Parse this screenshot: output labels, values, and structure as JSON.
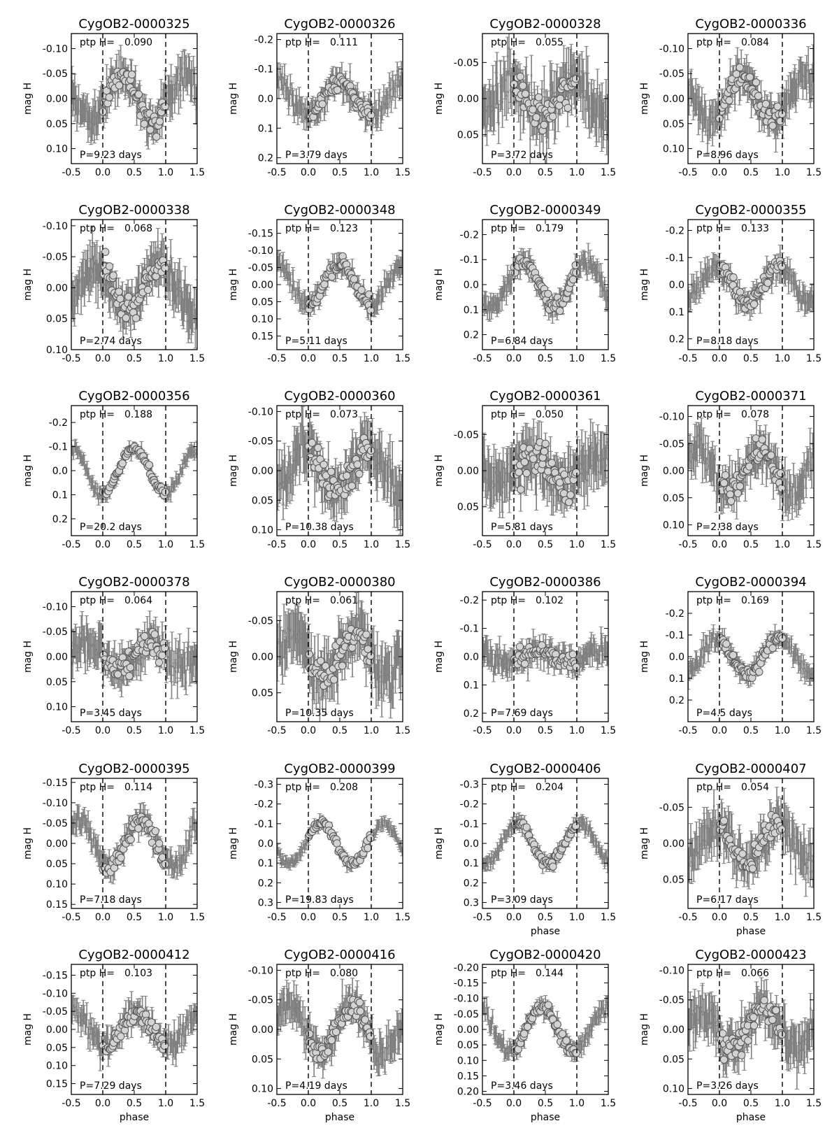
{
  "chart_data": {
    "type": "scatter",
    "description_labels": {
      "ylabel": "mag H",
      "xlabel": "phase",
      "ptp_prefix": "ptp H=",
      "period_prefix": "P=",
      "period_suffix": " days"
    },
    "shared": {
      "xlim": [
        -0.5,
        1.5
      ],
      "xticks": [
        -0.5,
        0.0,
        0.5,
        1.0,
        1.5
      ],
      "tick_labels_x": [
        "-0.5",
        "0.0",
        "0.5",
        "1.0",
        "1.5"
      ],
      "phase_markers": [
        0.0,
        1.0
      ],
      "y_inverted": true,
      "series_colors": {
        "errorbar": "#808080",
        "marker_fill": "#d3d3d3",
        "marker_edge": "#555555"
      }
    },
    "panels": [
      {
        "title": "CygOB2-0000325",
        "ptp": "0.090",
        "period": "9.23",
        "ylim": [
          -0.13,
          0.13
        ],
        "yticks": [
          "-0.10",
          "-0.05",
          "0.00",
          "0.05",
          "0.10"
        ],
        "ytick_vals": [
          -0.1,
          -0.05,
          0.0,
          0.05,
          0.1
        ],
        "peak": 0.3,
        "amp": 0.045,
        "noise": 0.025,
        "xlabel": false
      },
      {
        "title": "CygOB2-0000326",
        "ptp": "0.111",
        "period": "3.79",
        "ylim": [
          -0.22,
          0.22
        ],
        "yticks": [
          "-0.2",
          "-0.1",
          "0.0",
          "0.1",
          "0.2"
        ],
        "ytick_vals": [
          -0.2,
          -0.1,
          0.0,
          0.1,
          0.2
        ],
        "peak": 0.5,
        "amp": 0.055,
        "noise": 0.03,
        "xlabel": false
      },
      {
        "title": "CygOB2-0000328",
        "ptp": "0.055",
        "period": "3.72",
        "ylim": [
          -0.09,
          0.09
        ],
        "yticks": [
          "-0.05",
          "0.00",
          "0.05"
        ],
        "ytick_vals": [
          -0.05,
          0.0,
          0.05
        ],
        "peak": 0.95,
        "amp": 0.027,
        "noise": 0.025,
        "xlabel": false
      },
      {
        "title": "CygOB2-0000336",
        "ptp": "0.084",
        "period": "8.96",
        "ylim": [
          -0.13,
          0.13
        ],
        "yticks": [
          "-0.10",
          "-0.05",
          "0.00",
          "0.05",
          "0.10"
        ],
        "ytick_vals": [
          -0.1,
          -0.05,
          0.0,
          0.05,
          0.1
        ],
        "peak": 0.35,
        "amp": 0.042,
        "noise": 0.025,
        "xlabel": false
      },
      {
        "title": "CygOB2-0000338",
        "ptp": "0.068",
        "period": "2.74",
        "ylim": [
          -0.11,
          0.1
        ],
        "yticks": [
          "-0.10",
          "-0.05",
          "0.00",
          "0.05",
          "0.10"
        ],
        "ytick_vals": [
          -0.1,
          -0.05,
          0.0,
          0.05,
          0.1
        ],
        "peak": 0.9,
        "amp": 0.034,
        "noise": 0.025,
        "xlabel": false
      },
      {
        "title": "CygOB2-0000348",
        "ptp": "0.123",
        "period": "5.11",
        "ylim": [
          -0.19,
          0.19
        ],
        "yticks": [
          "-0.15",
          "-0.10",
          "-0.05",
          "0.00",
          "0.05",
          "0.10",
          "0.15"
        ],
        "ytick_vals": [
          -0.15,
          -0.1,
          -0.05,
          0.0,
          0.05,
          0.1,
          0.15
        ],
        "peak": 0.5,
        "amp": 0.06,
        "noise": 0.02,
        "xlabel": false
      },
      {
        "title": "CygOB2-0000349",
        "ptp": "0.179",
        "period": "6.84",
        "ylim": [
          -0.26,
          0.26
        ],
        "yticks": [
          "-0.2",
          "-0.1",
          "0.0",
          "0.1",
          "0.2"
        ],
        "ytick_vals": [
          -0.2,
          -0.1,
          0.0,
          0.1,
          0.2
        ],
        "peak": 0.15,
        "amp": 0.09,
        "noise": 0.03,
        "xlabel": false
      },
      {
        "title": "CygOB2-0000355",
        "ptp": "0.133",
        "period": "8.18",
        "ylim": [
          -0.24,
          0.24
        ],
        "yticks": [
          "-0.2",
          "-0.1",
          "0.0",
          "0.1",
          "0.2"
        ],
        "ytick_vals": [
          -0.2,
          -0.1,
          0.0,
          0.1,
          0.2
        ],
        "peak": 0.95,
        "amp": 0.066,
        "noise": 0.03,
        "xlabel": false
      },
      {
        "title": "CygOB2-0000356",
        "ptp": "0.188",
        "period": "20.2",
        "ylim": [
          -0.27,
          0.27
        ],
        "yticks": [
          "-0.2",
          "-0.1",
          "0.0",
          "0.1",
          "0.2"
        ],
        "ytick_vals": [
          -0.2,
          -0.1,
          0.0,
          0.1,
          0.2
        ],
        "peak": 0.5,
        "amp": 0.094,
        "noise": 0.02,
        "xlabel": false
      },
      {
        "title": "CygOB2-0000360",
        "ptp": "0.073",
        "period": "10.38",
        "ylim": [
          -0.11,
          0.11
        ],
        "yticks": [
          "-0.10",
          "-0.05",
          "0.00",
          "0.05",
          "0.10"
        ],
        "ytick_vals": [
          -0.1,
          -0.05,
          0.0,
          0.05,
          0.1
        ],
        "peak": 0.95,
        "amp": 0.036,
        "noise": 0.03,
        "xlabel": false
      },
      {
        "title": "CygOB2-0000361",
        "ptp": "0.050",
        "period": "5.81",
        "ylim": [
          -0.09,
          0.09
        ],
        "yticks": [
          "-0.05",
          "0.00",
          "0.05"
        ],
        "ytick_vals": [
          -0.05,
          0.0,
          0.05
        ],
        "peak": 0.3,
        "amp": 0.02,
        "noise": 0.025,
        "xlabel": false
      },
      {
        "title": "CygOB2-0000371",
        "ptp": "0.078",
        "period": "2.38",
        "ylim": [
          -0.12,
          0.12
        ],
        "yticks": [
          "-0.10",
          "-0.05",
          "0.00",
          "0.05",
          "0.10"
        ],
        "ytick_vals": [
          -0.1,
          -0.05,
          0.0,
          0.05,
          0.1
        ],
        "peak": 0.65,
        "amp": 0.039,
        "noise": 0.025,
        "xlabel": false
      },
      {
        "title": "CygOB2-0000378",
        "ptp": "0.064",
        "period": "3.45",
        "ylim": [
          -0.13,
          0.13
        ],
        "yticks": [
          "-0.10",
          "-0.05",
          "0.00",
          "0.05",
          "0.10"
        ],
        "ytick_vals": [
          -0.1,
          -0.05,
          0.0,
          0.05,
          0.1
        ],
        "peak": 0.75,
        "amp": 0.025,
        "noise": 0.025,
        "xlabel": false
      },
      {
        "title": "CygOB2-0000380",
        "ptp": "0.061",
        "period": "10.35",
        "ylim": [
          -0.09,
          0.09
        ],
        "yticks": [
          "-0.05",
          "0.00",
          "0.05"
        ],
        "ytick_vals": [
          -0.05,
          0.0,
          0.05
        ],
        "peak": 0.75,
        "amp": 0.03,
        "noise": 0.025,
        "xlabel": false
      },
      {
        "title": "CygOB2-0000386",
        "ptp": "0.102",
        "period": "7.69",
        "ylim": [
          -0.23,
          0.23
        ],
        "yticks": [
          "-0.2",
          "-0.1",
          "0.0",
          "0.1",
          "0.2"
        ],
        "ytick_vals": [
          -0.2,
          -0.1,
          0.0,
          0.1,
          0.2
        ],
        "peak": 0.4,
        "amp": 0.02,
        "noise": 0.03,
        "xlabel": false
      },
      {
        "title": "CygOB2-0000394",
        "ptp": "0.169",
        "period": "4.5",
        "ylim": [
          -0.3,
          0.3
        ],
        "yticks": [
          "-0.2",
          "-0.1",
          "0.0",
          "0.1",
          "0.2"
        ],
        "ytick_vals": [
          -0.2,
          -0.1,
          0.0,
          0.1,
          0.2
        ],
        "peak": 0.95,
        "amp": 0.084,
        "noise": 0.03,
        "xlabel": false
      },
      {
        "title": "CygOB2-0000395",
        "ptp": "0.114",
        "period": "7.18",
        "ylim": [
          -0.16,
          0.16
        ],
        "yticks": [
          "-0.15",
          "-0.10",
          "-0.05",
          "0.00",
          "0.05",
          "0.10",
          "0.15"
        ],
        "ytick_vals": [
          -0.15,
          -0.1,
          -0.05,
          0.0,
          0.05,
          0.1,
          0.15
        ],
        "peak": 0.6,
        "amp": 0.057,
        "noise": 0.02,
        "xlabel": false
      },
      {
        "title": "CygOB2-0000399",
        "ptp": "0.208",
        "period": "19.83",
        "ylim": [
          -0.33,
          0.33
        ],
        "yticks": [
          "-0.3",
          "-0.2",
          "-0.1",
          "0.0",
          "0.1",
          "0.2",
          "0.3"
        ],
        "ytick_vals": [
          -0.3,
          -0.2,
          -0.1,
          0.0,
          0.1,
          0.2,
          0.3
        ],
        "peak": 0.2,
        "amp": 0.104,
        "noise": 0.02,
        "xlabel": false
      },
      {
        "title": "CygOB2-0000406",
        "ptp": "0.204",
        "period": "3.09",
        "ylim": [
          -0.33,
          0.33
        ],
        "yticks": [
          "-0.3",
          "-0.2",
          "-0.1",
          "0.0",
          "0.1",
          "0.2",
          "0.3"
        ],
        "ytick_vals": [
          -0.3,
          -0.2,
          -0.1,
          0.0,
          0.1,
          0.2,
          0.3
        ],
        "peak": 0.05,
        "amp": 0.102,
        "noise": 0.025,
        "xlabel": true
      },
      {
        "title": "CygOB2-0000407",
        "ptp": "0.054",
        "period": "6.17",
        "ylim": [
          -0.09,
          0.09
        ],
        "yticks": [
          "-0.05",
          "0.00",
          "0.05"
        ],
        "ytick_vals": [
          -0.05,
          0.0,
          0.05
        ],
        "peak": 0.95,
        "amp": 0.027,
        "noise": 0.02,
        "xlabel": true
      },
      {
        "title": "CygOB2-0000412",
        "ptp": "0.103",
        "period": "7.29",
        "ylim": [
          -0.18,
          0.18
        ],
        "yticks": [
          "-0.15",
          "-0.10",
          "-0.05",
          "0.00",
          "0.05",
          "0.10",
          "0.15"
        ],
        "ytick_vals": [
          -0.15,
          -0.1,
          -0.05,
          0.0,
          0.05,
          0.1,
          0.15
        ],
        "peak": 0.55,
        "amp": 0.045,
        "noise": 0.025,
        "xlabel": true
      },
      {
        "title": "CygOB2-0000416",
        "ptp": "0.080",
        "period": "4.19",
        "ylim": [
          -0.11,
          0.11
        ],
        "yticks": [
          "-0.10",
          "-0.05",
          "0.00",
          "0.05",
          "0.10"
        ],
        "ytick_vals": [
          -0.1,
          -0.05,
          0.0,
          0.05,
          0.1
        ],
        "peak": 0.7,
        "amp": 0.04,
        "noise": 0.02,
        "xlabel": true
      },
      {
        "title": "CygOB2-0000420",
        "ptp": "0.144",
        "period": "3.46",
        "ylim": [
          -0.21,
          0.21
        ],
        "yticks": [
          "-0.20",
          "-0.15",
          "-0.10",
          "-0.05",
          "0.00",
          "0.05",
          "0.10",
          "0.15",
          "0.20"
        ],
        "ytick_vals": [
          -0.2,
          -0.15,
          -0.1,
          -0.05,
          0.0,
          0.05,
          0.1,
          0.15,
          0.2
        ],
        "peak": 0.45,
        "amp": 0.072,
        "noise": 0.02,
        "xlabel": true
      },
      {
        "title": "CygOB2-0000423",
        "ptp": "0.066",
        "period": "3.26",
        "ylim": [
          -0.11,
          0.11
        ],
        "yticks": [
          "-0.10",
          "-0.05",
          "0.00",
          "0.05",
          "0.10"
        ],
        "ytick_vals": [
          -0.1,
          -0.05,
          0.0,
          0.05,
          0.1
        ],
        "peak": 0.7,
        "amp": 0.033,
        "noise": 0.025,
        "xlabel": true
      }
    ]
  }
}
